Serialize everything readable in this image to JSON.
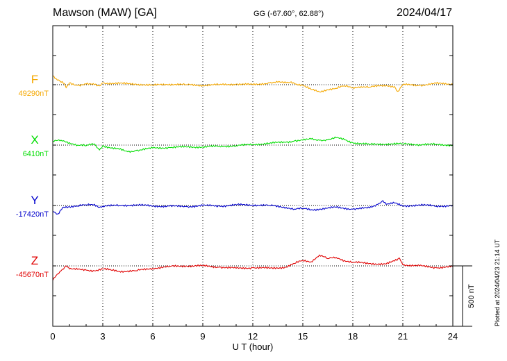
{
  "header": {
    "station": "Mawson (MAW)  [GA]",
    "coords": "GG (-67.60°,  62.88°)",
    "date": "2024/04/17"
  },
  "footer": {
    "plotted": "Plotted at 2024/04/23 21:14 UT"
  },
  "chart_data": {
    "type": "line",
    "xlabel": "U T (hour)",
    "xlim": [
      0,
      24
    ],
    "xticks": [
      0,
      3,
      6,
      9,
      12,
      15,
      18,
      21,
      24
    ],
    "grid": true,
    "scale_bar": {
      "label": "500 nT",
      "value_nT": 500
    },
    "series": [
      {
        "name": "F",
        "baseline_label": "49290nT",
        "color": "#f5a800",
        "x": [
          0,
          0.2,
          0.5,
          0.7,
          0.8,
          1,
          1.5,
          2,
          2.5,
          2.8,
          3,
          4,
          5,
          6,
          7,
          8,
          9,
          10,
          11,
          12,
          13,
          13.5,
          14,
          14.3,
          14.5,
          15,
          15.5,
          16,
          16.3,
          17,
          17.5,
          18,
          18.5,
          19,
          20,
          20.5,
          20.7,
          21,
          22,
          23,
          24
        ],
        "y": [
          75,
          50,
          20,
          10,
          -25,
          15,
          -5,
          5,
          0,
          -10,
          15,
          10,
          5,
          -5,
          5,
          0,
          -5,
          0,
          5,
          0,
          15,
          20,
          15,
          25,
          10,
          -5,
          -40,
          -60,
          -45,
          -30,
          -10,
          -25,
          -15,
          -20,
          -5,
          -15,
          -55,
          0,
          -5,
          10,
          5
        ]
      },
      {
        "name": "X",
        "baseline_label": "6410nT",
        "color": "#00dd00",
        "x": [
          0,
          0.5,
          1,
          1.5,
          2,
          2.5,
          2.8,
          3,
          3.5,
          4,
          4.5,
          5,
          6,
          7,
          8,
          9,
          10,
          11,
          12,
          13,
          14,
          14.5,
          15,
          15.5,
          16,
          16.5,
          17,
          17.5,
          18,
          19,
          20,
          21,
          22,
          23,
          24
        ],
        "y": [
          30,
          40,
          20,
          0,
          -5,
          10,
          -40,
          -5,
          -25,
          -35,
          -55,
          -45,
          -25,
          -20,
          -15,
          -15,
          -10,
          -5,
          5,
          15,
          25,
          35,
          40,
          50,
          40,
          45,
          60,
          45,
          20,
          5,
          10,
          10,
          5,
          5,
          0
        ]
      },
      {
        "name": "Y",
        "baseline_label": "-17420nT",
        "color": "#0000cc",
        "x": [
          0,
          0.3,
          0.6,
          1,
          1.5,
          2,
          2.5,
          2.8,
          3,
          4,
          5,
          6,
          7,
          8,
          9,
          10,
          11,
          12,
          13,
          14,
          14.5,
          15,
          15.5,
          16,
          17,
          18,
          19,
          19.5,
          19.8,
          20,
          20.5,
          21,
          22,
          23,
          24
        ],
        "y": [
          -50,
          -70,
          -15,
          -10,
          -5,
          5,
          10,
          -15,
          -5,
          0,
          5,
          -5,
          -5,
          -10,
          0,
          -5,
          5,
          5,
          0,
          -15,
          -30,
          -25,
          -35,
          -30,
          -15,
          -30,
          -20,
          10,
          40,
          10,
          20,
          -5,
          5,
          -5,
          0
        ]
      },
      {
        "name": "Z",
        "baseline_label": "-45670nT",
        "color": "#e00000",
        "x": [
          0,
          0.2,
          0.5,
          0.8,
          1,
          1.5,
          2,
          2.5,
          3,
          3.5,
          4,
          5,
          6,
          7,
          8,
          9,
          10,
          11,
          12,
          13,
          14,
          14.5,
          15,
          15.5,
          16,
          16.5,
          17,
          17.5,
          18,
          19,
          20,
          20.5,
          20.8,
          21,
          22,
          23,
          24
        ],
        "y": [
          -120,
          -80,
          -40,
          0,
          -25,
          -30,
          -35,
          -40,
          -25,
          -35,
          -45,
          -40,
          -20,
          -5,
          0,
          0,
          -10,
          -20,
          -15,
          -20,
          -10,
          20,
          45,
          35,
          90,
          60,
          70,
          45,
          30,
          20,
          15,
          40,
          65,
          10,
          0,
          -15,
          -5
        ]
      }
    ]
  }
}
